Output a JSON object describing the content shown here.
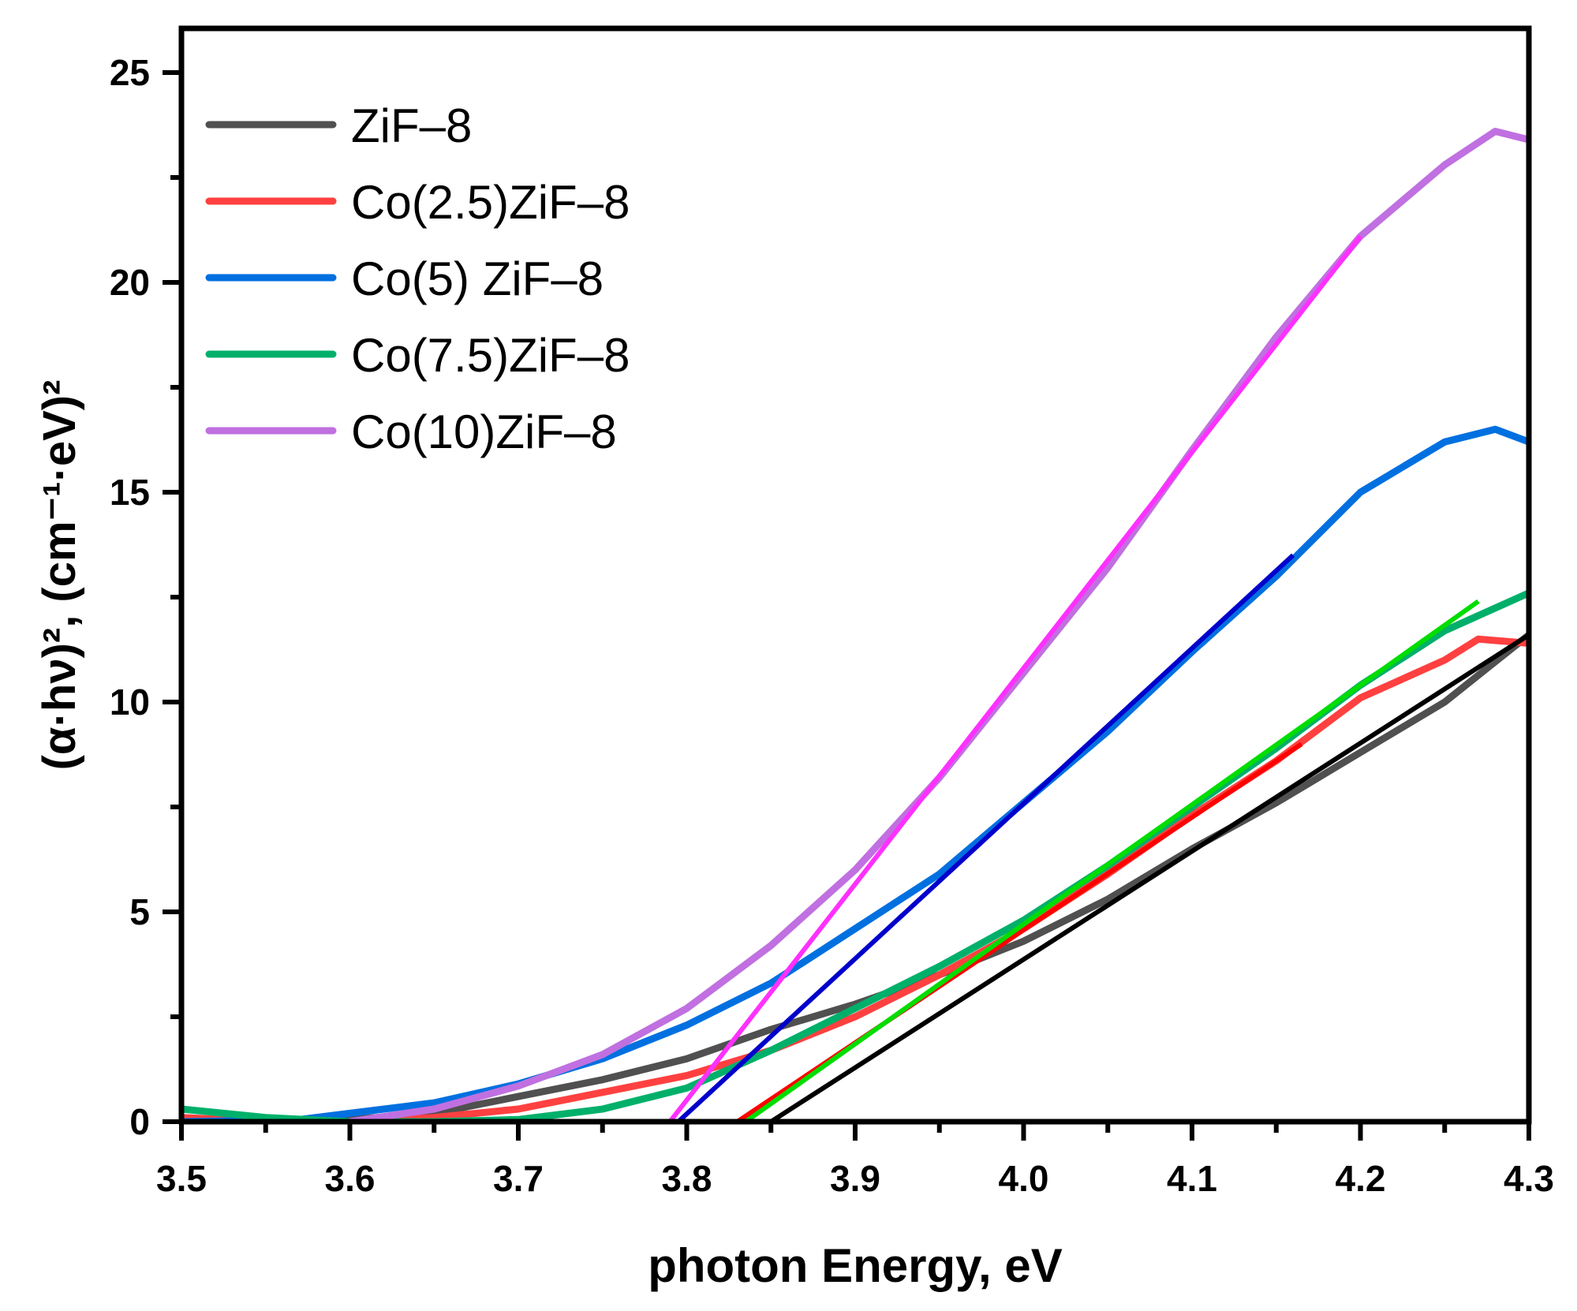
{
  "chart_data": {
    "type": "line",
    "title": "",
    "xlabel": "photon Energy, eV",
    "ylabel": "(α·hν)², (cm⁻¹·eV)²",
    "xlim": [
      3.5,
      4.3
    ],
    "ylim": [
      0,
      26
    ],
    "xticks": [
      "3.5",
      "3.6",
      "3.7",
      "3.8",
      "3.9",
      "4.0",
      "4.1",
      "4.2",
      "4.3"
    ],
    "yticks": [
      "0",
      "5",
      "10",
      "15",
      "20",
      "25"
    ],
    "grid": false,
    "legend_position": "top-left",
    "series": [
      {
        "name": "ZiF–8",
        "color": "#505050",
        "x": [
          3.5,
          3.55,
          3.6,
          3.65,
          3.7,
          3.75,
          3.8,
          3.85,
          3.9,
          3.95,
          4.0,
          4.05,
          4.1,
          4.15,
          4.2,
          4.25,
          4.3
        ],
        "y": [
          0.05,
          0.05,
          0.05,
          0.2,
          0.6,
          1.0,
          1.5,
          2.2,
          2.8,
          3.5,
          4.3,
          5.3,
          6.5,
          7.6,
          8.8,
          10.0,
          11.6
        ]
      },
      {
        "name": "Co(2.5)ZiF–8",
        "color": "#ff4040",
        "x": [
          3.5,
          3.55,
          3.6,
          3.65,
          3.7,
          3.75,
          3.8,
          3.85,
          3.9,
          3.95,
          4.0,
          4.05,
          4.1,
          4.15,
          4.2,
          4.25,
          4.27,
          4.3
        ],
        "y": [
          0.1,
          0.0,
          0.0,
          0.1,
          0.3,
          0.7,
          1.1,
          1.7,
          2.5,
          3.5,
          4.6,
          5.9,
          7.3,
          8.6,
          10.1,
          11.0,
          11.5,
          11.4
        ]
      },
      {
        "name": "Co(5) ZiF–8",
        "color": "#0070e0",
        "x": [
          3.5,
          3.57,
          3.6,
          3.65,
          3.7,
          3.75,
          3.8,
          3.85,
          3.9,
          3.95,
          4.0,
          4.05,
          4.1,
          4.15,
          4.2,
          4.25,
          4.28,
          4.3
        ],
        "y": [
          0.0,
          0.05,
          0.2,
          0.45,
          0.9,
          1.5,
          2.3,
          3.3,
          4.6,
          5.9,
          7.6,
          9.3,
          11.2,
          13.0,
          15.0,
          16.2,
          16.5,
          16.2
        ]
      },
      {
        "name": "Co(7.5)ZiF–8",
        "color": "#00b06a",
        "x": [
          3.5,
          3.55,
          3.6,
          3.65,
          3.7,
          3.75,
          3.8,
          3.85,
          3.9,
          3.95,
          4.0,
          4.05,
          4.1,
          4.15,
          4.2,
          4.25,
          4.3
        ],
        "y": [
          0.3,
          0.1,
          0.0,
          0.0,
          0.05,
          0.3,
          0.8,
          1.7,
          2.7,
          3.7,
          4.8,
          6.1,
          7.5,
          8.9,
          10.4,
          11.7,
          12.6
        ]
      },
      {
        "name": "Co(10)ZiF–8",
        "color": "#c070e0",
        "x": [
          3.6,
          3.65,
          3.7,
          3.75,
          3.8,
          3.85,
          3.9,
          3.95,
          4.0,
          4.05,
          4.1,
          4.15,
          4.2,
          4.25,
          4.28,
          4.3
        ],
        "y": [
          0.0,
          0.3,
          0.85,
          1.6,
          2.7,
          4.2,
          6.0,
          8.2,
          10.7,
          13.2,
          16.0,
          18.7,
          21.1,
          22.8,
          23.6,
          23.4
        ]
      }
    ],
    "fits": [
      {
        "of": "ZiF–8",
        "color": "#000000",
        "x": [
          3.85,
          4.3
        ],
        "y": [
          0,
          11.6
        ]
      },
      {
        "of": "Co(2.5)ZiF–8",
        "color": "#ff0000",
        "x": [
          3.83,
          4.165
        ],
        "y": [
          0,
          9.0
        ]
      },
      {
        "of": "Co(7.5)ZiF–8",
        "color": "#00dd00",
        "x": [
          3.835,
          4.27
        ],
        "y": [
          0,
          12.4
        ]
      },
      {
        "of": "Co(5) ZiF–8",
        "color": "#0000cc",
        "x": [
          3.795,
          4.16
        ],
        "y": [
          0,
          13.5
        ]
      },
      {
        "of": "Co(10)ZiF–8",
        "color": "#ff30ff",
        "x": [
          3.79,
          4.2
        ],
        "y": [
          0,
          21.1
        ]
      }
    ]
  }
}
